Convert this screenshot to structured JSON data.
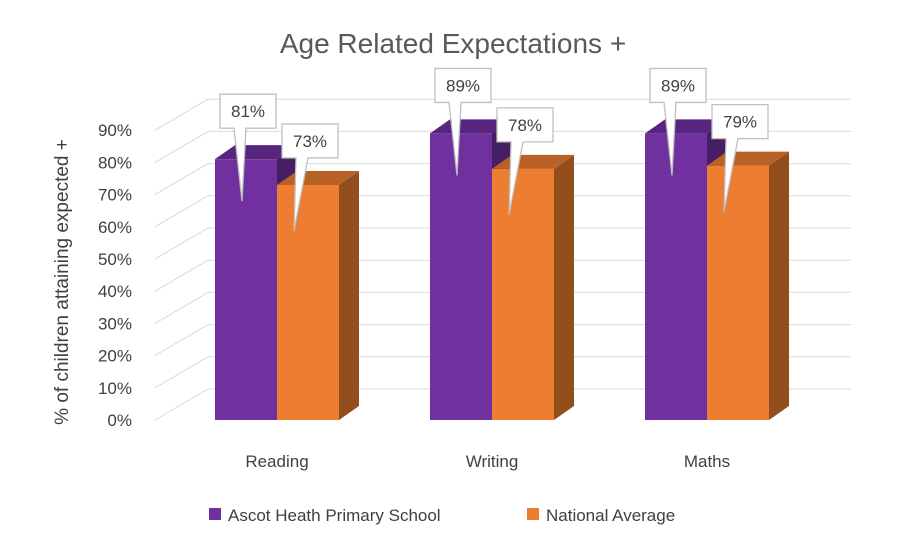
{
  "chart_data": {
    "type": "bar",
    "title": "Age Related Expectations +",
    "xlabel": "",
    "ylabel": "% of children attaining expected +",
    "categories": [
      "Reading",
      "Writing",
      "Maths"
    ],
    "series": [
      {
        "name": "Ascot Heath Primary School",
        "values": [
          81,
          89,
          89
        ],
        "color": "#7030A0",
        "data_labels": [
          "81%",
          "89%",
          "89%"
        ]
      },
      {
        "name": "National Average",
        "values": [
          73,
          78,
          79
        ],
        "color": "#ED7D31",
        "data_labels": [
          "73%",
          "78%",
          "79%"
        ]
      }
    ],
    "ylim": [
      0,
      90
    ],
    "y_ticks": [
      "0%",
      "10%",
      "20%",
      "30%",
      "40%",
      "50%",
      "60%",
      "70%",
      "80%",
      "90%"
    ],
    "grid": true,
    "style": "3d-column",
    "legend_position": "bottom"
  }
}
